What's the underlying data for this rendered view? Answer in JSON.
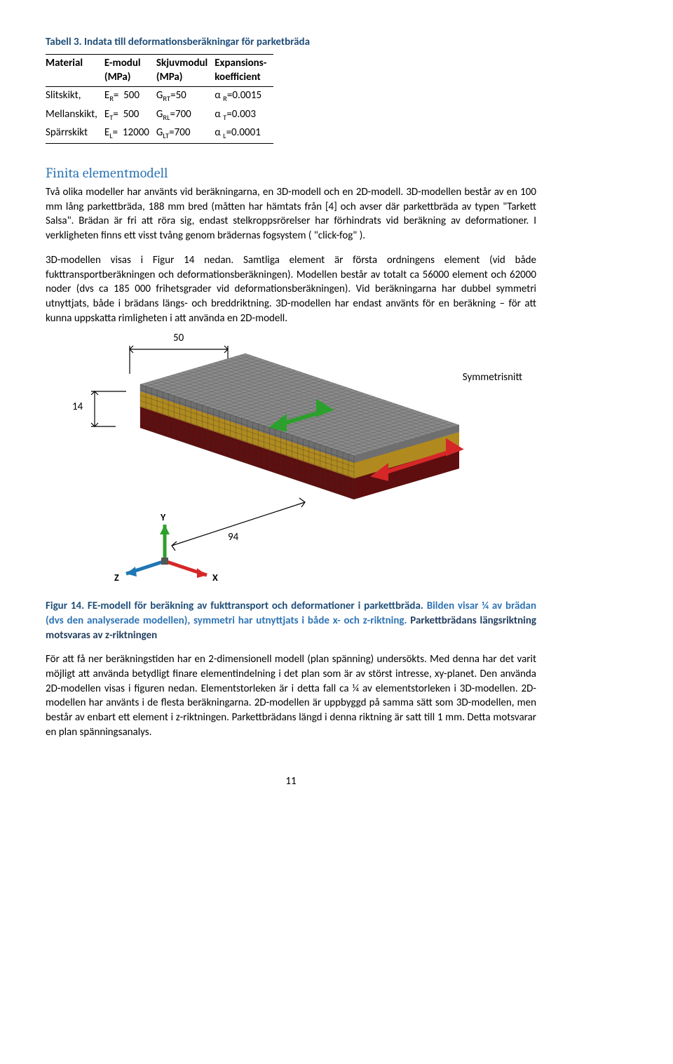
{
  "table": {
    "caption": "Tabell 3. Indata till deformationsberäkningar för parketbräda",
    "headers": [
      "Material",
      "E-modul (MPa)",
      "Skjuvmodul (MPa)",
      "Expansions-koefficient"
    ],
    "rows": [
      {
        "material": "Slitskikt,",
        "emod_sym": "E",
        "emod_sub": "R",
        "emod_eq": "= ",
        "emod_val": "500",
        "g_sym": "G",
        "g_sub": "RT",
        "g_val": "=50",
        "a_sym": "α ",
        "a_sub": "R",
        "a_val": "=0.0015"
      },
      {
        "material": "Mellanskikt,",
        "emod_sym": "E",
        "emod_sub": "T",
        "emod_eq": "= ",
        "emod_val": "500",
        "g_sym": "G",
        "g_sub": "RL",
        "g_val": "=700",
        "a_sym": "α ",
        "a_sub": "T",
        "a_val": "=0.003"
      },
      {
        "material": "Spärrskikt",
        "emod_sym": "E",
        "emod_sub": "L",
        "emod_eq": "= ",
        "emod_val": "12000",
        "g_sym": "G",
        "g_sub": "LT",
        "g_val": "=700",
        "a_sym": "α ",
        "a_sub": "L",
        "a_val": "=0.0001"
      }
    ]
  },
  "section_title": "Finita elementmodell",
  "para1": "Två olika modeller har använts vid beräkningarna, en 3D-modell och en 2D-modell. 3D-modellen består av en 100 mm lång parkettbräda, 188 mm bred (måtten har hämtats från [4] och avser där parkettbräda av typen \"Tarkett Salsa\". Brädan är fri att röra sig, endast stelkroppsrörelser har förhindrats vid beräkning av deformationer. I verkligheten finns ett visst tvång genom brädernas fogsystem ( \"click-fog\" ).",
  "para2": "3D-modellen visas i Figur 14 nedan. Samtliga element är första ordningens element (vid både fukttransportberäkningen och deformationsberäkningen). Modellen består av totalt ca 56000 element och 62000 noder (dvs ca 185 000 frihetsgrader vid deformationsberäkningen). Vid beräkningarna har dubbel symmetri utnyttjats, både i brädans längs- och breddriktning. 3D-modellen har endast använts för en beräkning – för att kunna uppskatta rimligheten i att använda en 2D-modell.",
  "figure": {
    "dim_top": "50",
    "dim_left": "14",
    "dim_bottom": "94",
    "symmetry_label": "Symmetrisnitt",
    "axis_labels": {
      "x": "X",
      "y": "Y",
      "z": "Z"
    },
    "layer_colors": {
      "top": "#8a8a8a",
      "top_side": "#6f6f6f",
      "mid": "#d8b338",
      "mid_side": "#b08a1e",
      "bot": "#8a1515",
      "bot_side": "#5e0e0e"
    },
    "arrow_colors": {
      "x": "#d62728",
      "y": "#2ca02c",
      "z": "#1f77b4",
      "sym": "#d62728",
      "mid": "#2ca02c"
    }
  },
  "fig_caption": {
    "lead": "Figur 14. FE-modell för beräkning av fukttransport och deformationer i parkettbräda. ",
    "blue": "Bilden visar ¼ av brädan (dvs den analyserade modellen), symmetri har utnyttjats i både x- och z-riktning. ",
    "dark": "Parkettbrädans längsriktning motsvaras av z-riktningen"
  },
  "para3": "För att få ner beräkningstiden har en 2-dimensionell modell (plan spänning) undersökts. Med denna har det varit möjligt att använda betydligt finare elementindelning i det plan som är av störst intresse, xy-planet. Den använda 2D-modellen visas i figuren nedan. Elementstorleken är i detta fall ca ¼ av elementstorleken i 3D-modellen. 2D-modellen har använts i de flesta beräkningarna. 2D-modellen är uppbyggd på samma sätt som 3D-modellen, men består av enbart ett element i z-riktningen. Parkettbrädans längd i denna riktning är satt till 1 mm. Detta motsvarar en plan spänningsanalys.",
  "page_number": "11"
}
